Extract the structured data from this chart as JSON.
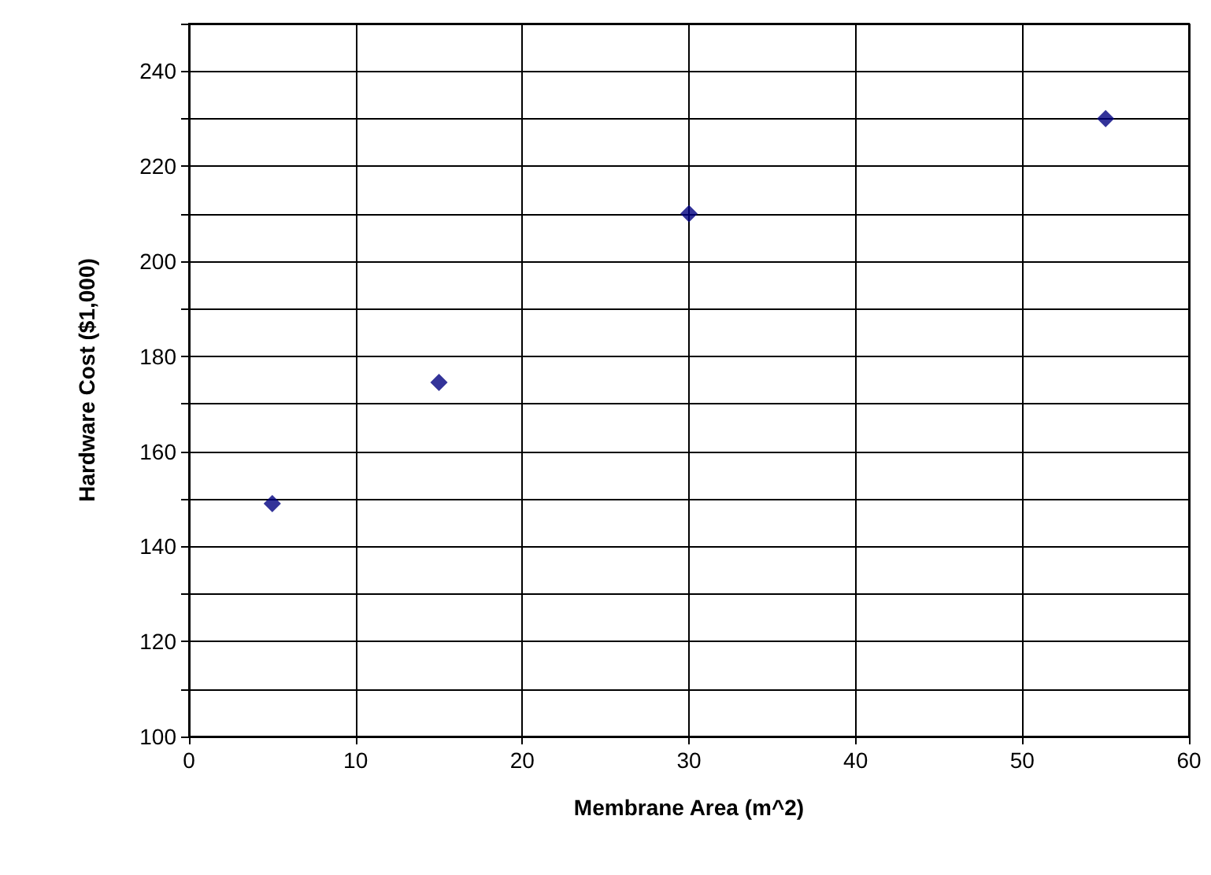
{
  "chart_data": {
    "type": "scatter",
    "xlabel": "Membrane Area (m^2)",
    "ylabel": "Hardware Cost ($1,000)",
    "x": [
      5,
      15,
      30,
      55
    ],
    "series": [
      {
        "color": "#000080",
        "values": [
          149,
          174.5,
          210,
          230
        ]
      }
    ],
    "marker": "diamond",
    "grid": true,
    "xlim": [
      0,
      60
    ],
    "xticks": [
      0,
      10,
      20,
      30,
      40,
      50,
      60
    ],
    "ylim": [
      100,
      250
    ],
    "yticks": [
      100,
      {
        "value": 110,
        "label": null
      },
      120,
      {
        "value": 130,
        "label": null
      },
      140,
      {
        "value": 150,
        "label": null
      },
      160,
      {
        "value": 170,
        "label": null
      },
      180,
      {
        "value": 190,
        "label": null
      },
      200,
      {
        "value": 210,
        "label": null
      },
      220,
      {
        "value": 230,
        "label": null
      },
      240,
      {
        "value": 250,
        "label": null
      }
    ]
  }
}
